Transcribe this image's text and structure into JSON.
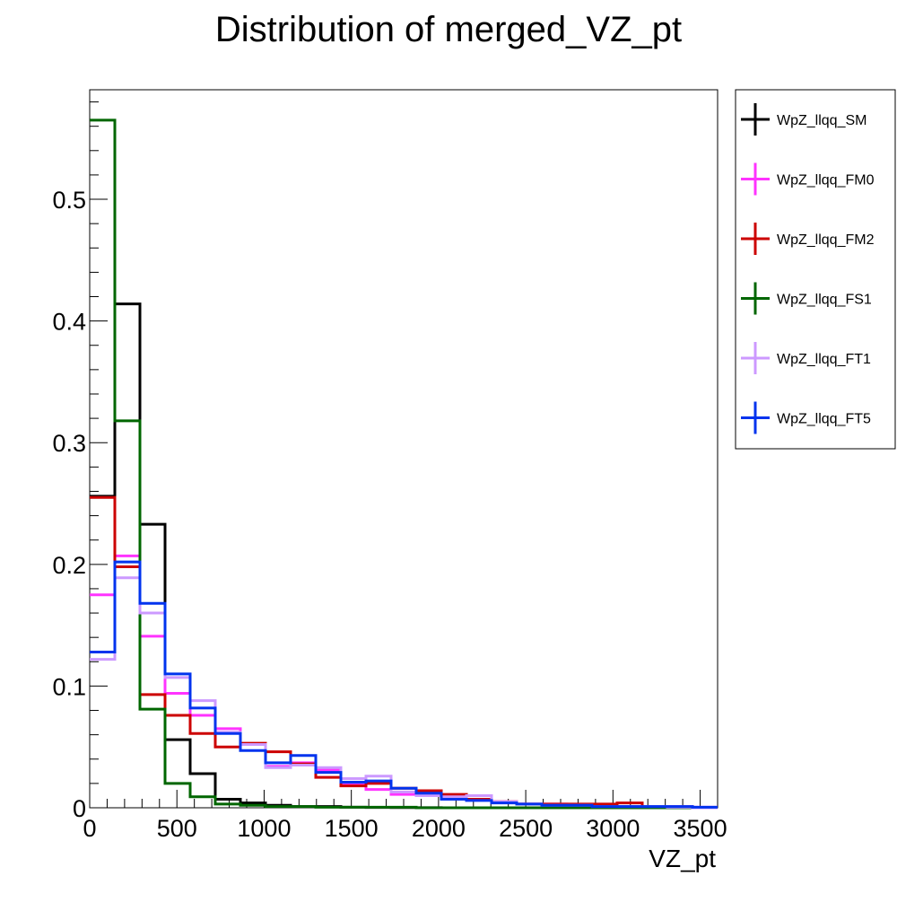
{
  "chart_data": {
    "type": "histogram",
    "title": "Distribution of merged_VZ_pt",
    "xlabel": "VZ_pt",
    "ylabel": "",
    "xlim": [
      0,
      3600
    ],
    "ylim": [
      0,
      0.59
    ],
    "x_ticks": [
      0,
      500,
      1000,
      1500,
      2000,
      2500,
      3000,
      3500
    ],
    "y_ticks": [
      0,
      0.1,
      0.2,
      0.3,
      0.4,
      0.5
    ],
    "y_tick_labels": [
      "0",
      "0.1",
      "0.2",
      "0.3",
      "0.4",
      "0.5"
    ],
    "bin_edges": [
      0,
      144,
      288,
      432,
      576,
      720,
      864,
      1008,
      1152,
      1296,
      1440,
      1584,
      1728,
      1872,
      2016,
      2160,
      2304,
      2448,
      2592,
      2736,
      2880,
      3024,
      3168,
      3312,
      3456,
      3600
    ],
    "legend_position": "outside-right",
    "grid": false,
    "series": [
      {
        "name": "WpZ_llqq_SM",
        "color": "#000000",
        "values": [
          0.256,
          0.414,
          0.233,
          0.056,
          0.028,
          0.007,
          0.004,
          0.002,
          0.001,
          0.001,
          0.0005,
          0.0003,
          0.0002,
          0.0001,
          0,
          0,
          0,
          0,
          0,
          0,
          0,
          0,
          0,
          0,
          0
        ]
      },
      {
        "name": "WpZ_llqq_FM0",
        "color": "#ff33ff",
        "values": [
          0.175,
          0.207,
          0.141,
          0.094,
          0.076,
          0.065,
          0.052,
          0.034,
          0.037,
          0.031,
          0.019,
          0.015,
          0.011,
          0.011,
          0.008,
          0.007,
          0.005,
          0.003,
          0.003,
          0.002,
          0.002,
          0.001,
          0.001,
          0.001,
          0.0005
        ]
      },
      {
        "name": "WpZ_llqq_FM2",
        "color": "#cc0000",
        "values": [
          0.255,
          0.198,
          0.093,
          0.076,
          0.061,
          0.05,
          0.053,
          0.046,
          0.036,
          0.025,
          0.018,
          0.02,
          0.016,
          0.014,
          0.011,
          0.007,
          0.005,
          0.003,
          0.003,
          0.003,
          0.003,
          0.004,
          0,
          0,
          0
        ]
      },
      {
        "name": "WpZ_llqq_FS1",
        "color": "#006600",
        "values": [
          0.565,
          0.318,
          0.081,
          0.02,
          0.009,
          0.003,
          0.002,
          0.001,
          0.001,
          0.0005,
          0.0005,
          0.0005,
          0.0005,
          0,
          0,
          0,
          0,
          0,
          0,
          0,
          0,
          0,
          0,
          0,
          0
        ]
      },
      {
        "name": "WpZ_llqq_FT1",
        "color": "#cc99ff",
        "values": [
          0.122,
          0.189,
          0.16,
          0.107,
          0.088,
          0.062,
          0.052,
          0.033,
          0.035,
          0.033,
          0.024,
          0.026,
          0.013,
          0.01,
          0.009,
          0.01,
          0.005,
          0.003,
          0.002,
          0.002,
          0.001,
          0.001,
          0.001,
          0.0005,
          0
        ]
      },
      {
        "name": "WpZ_llqq_FT5",
        "color": "#0033ee",
        "values": [
          0.128,
          0.202,
          0.168,
          0.11,
          0.082,
          0.061,
          0.047,
          0.037,
          0.043,
          0.029,
          0.021,
          0.022,
          0.016,
          0.012,
          0.007,
          0.006,
          0.004,
          0.003,
          0.002,
          0.002,
          0.001,
          0.001,
          0.001,
          0.001,
          0.0005
        ]
      }
    ]
  }
}
